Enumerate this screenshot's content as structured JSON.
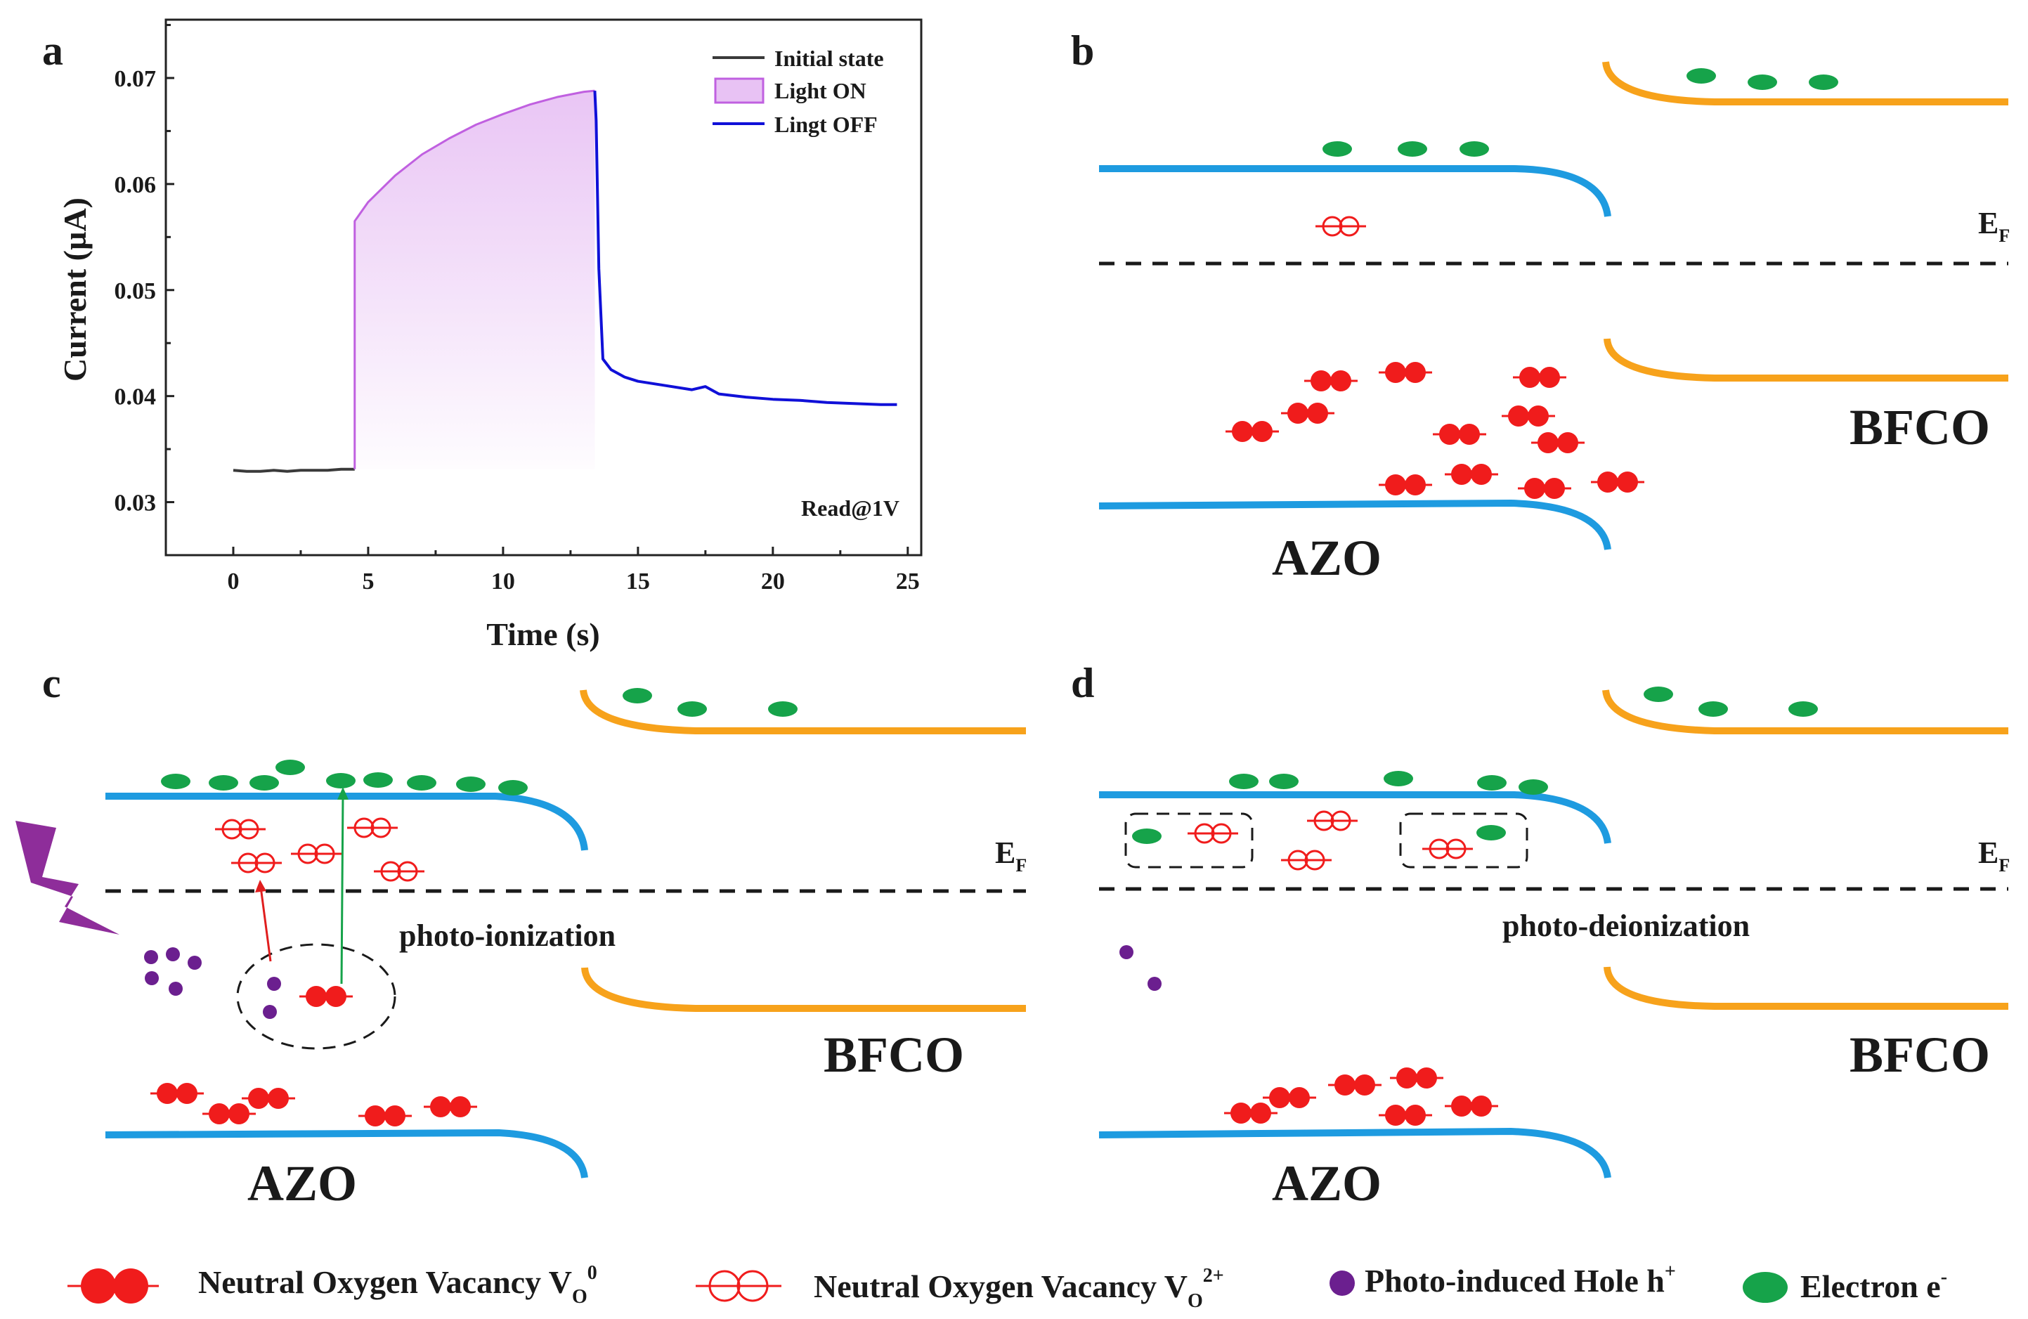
{
  "panel_letters": {
    "a": "a",
    "b": "b",
    "c": "c",
    "d": "d"
  },
  "colors": {
    "azo_band": "#1e9be0",
    "bfco_band": "#f7a21b",
    "vacancy": "#f01c1c",
    "electron": "#16a34a",
    "hole": "#6b1f8f",
    "lightning": "#8e2d9a",
    "initial": "#3a3a3a",
    "light_on": "#c060e0",
    "light_off": "#1010d8"
  },
  "chart_data": {
    "type": "line",
    "title": "",
    "xlabel": "Time (s)",
    "ylabel": "Current (µA)",
    "xlim": [
      -2.5,
      25.5
    ],
    "ylim": [
      0.025,
      0.0755
    ],
    "xticks": [
      0,
      5,
      10,
      15,
      20,
      25
    ],
    "yticks": [
      0.03,
      0.04,
      0.05,
      0.06,
      0.07
    ],
    "ytick_labels": [
      "0.03",
      "0.04",
      "0.05",
      "0.06",
      "0.07"
    ],
    "annotation": "Read@1V",
    "series": [
      {
        "name": "Initial state",
        "color": "#3a3a3a",
        "x": [
          0,
          0.5,
          1,
          1.5,
          2,
          2.5,
          3,
          3.5,
          4,
          4.5
        ],
        "y": [
          0.033,
          0.0329,
          0.0329,
          0.033,
          0.0329,
          0.033,
          0.033,
          0.033,
          0.0331,
          0.0331
        ]
      },
      {
        "name": "Light ON",
        "color": "#c060e0",
        "x": [
          4.5,
          4.5,
          5,
          6,
          7,
          8,
          9,
          10,
          11,
          12,
          13,
          13.4
        ],
        "y": [
          0.0331,
          0.0565,
          0.0583,
          0.0608,
          0.0628,
          0.0643,
          0.0656,
          0.0666,
          0.0675,
          0.0682,
          0.0687,
          0.0688
        ]
      },
      {
        "name": "Lingt OFF",
        "color": "#1010d8",
        "x": [
          13.4,
          13.45,
          13.55,
          13.7,
          14,
          14.5,
          15,
          16,
          17,
          17.5,
          18,
          19,
          20,
          21,
          22,
          23,
          24,
          24.6
        ],
        "y": [
          0.0688,
          0.066,
          0.052,
          0.0435,
          0.0425,
          0.0418,
          0.0414,
          0.041,
          0.0406,
          0.0409,
          0.0402,
          0.0399,
          0.0397,
          0.0396,
          0.0394,
          0.0393,
          0.0392,
          0.0392
        ]
      }
    ]
  },
  "panel_b": {
    "ef_label": "E",
    "ef_sub": "F",
    "azo_label": "AZO",
    "bfco_label": "BFCO"
  },
  "panel_c": {
    "ef_label": "E",
    "ef_sub": "F",
    "process_label": "photo-ionization",
    "azo_label": "AZO",
    "bfco_label": "BFCO"
  },
  "panel_d": {
    "ef_label": "E",
    "ef_sub": "F",
    "process_label": "photo-deionization",
    "azo_label": "AZO",
    "bfco_label": "BFCO"
  },
  "legend": {
    "neutral_text": "Neutral Oxygen Vacancy V",
    "neutral_sub": "O",
    "neutral_sup": "0",
    "ionized_text": "Neutral Oxygen Vacancy V",
    "ionized_sub": "O",
    "ionized_sup": "2+",
    "hole_text": "Photo-induced Hole h",
    "hole_sup": "+",
    "electron_text": "Electron e",
    "electron_sup": "-"
  }
}
